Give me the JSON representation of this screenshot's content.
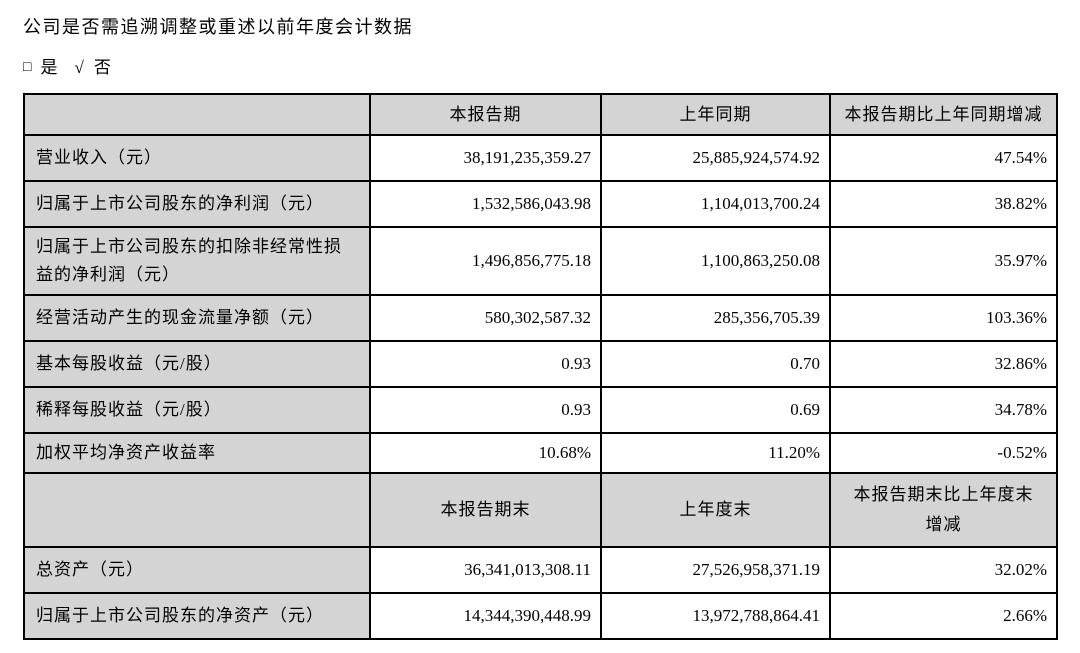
{
  "intro": {
    "question": "公司是否需追溯调整或重述以前年度会计数据",
    "yes_box": "□",
    "yes_label": "是",
    "check_mark": "√",
    "no_label": "否"
  },
  "table": {
    "header_period": {
      "col_label": "",
      "col_current": "本报告期",
      "col_prior": "上年同期",
      "col_change": "本报告期比上年同期增减"
    },
    "rows_period": [
      {
        "label": "营业收入（元）",
        "current": "38,191,235,359.27",
        "prior": "25,885,924,574.92",
        "change": "47.54%"
      },
      {
        "label": "归属于上市公司股东的净利润（元）",
        "current": "1,532,586,043.98",
        "prior": "1,104,013,700.24",
        "change": "38.82%"
      },
      {
        "label": "归属于上市公司股东的扣除非经常性损益的净利润（元）",
        "current": "1,496,856,775.18",
        "prior": "1,100,863,250.08",
        "change": "35.97%"
      },
      {
        "label": "经营活动产生的现金流量净额（元）",
        "current": "580,302,587.32",
        "prior": "285,356,705.39",
        "change": "103.36%"
      },
      {
        "label": "基本每股收益（元/股）",
        "current": "0.93",
        "prior": "0.70",
        "change": "32.86%"
      },
      {
        "label": "稀释每股收益（元/股）",
        "current": "0.93",
        "prior": "0.69",
        "change": "34.78%"
      },
      {
        "label": "加权平均净资产收益率",
        "current": "10.68%",
        "prior": "11.20%",
        "change": "-0.52%"
      }
    ],
    "header_end": {
      "col_label": "",
      "col_current": "本报告期末",
      "col_prior": "上年度末",
      "col_change": "本报告期末比上年度末增减"
    },
    "rows_end": [
      {
        "label": "总资产（元）",
        "current": "36,341,013,308.11",
        "prior": "27,526,958,371.19",
        "change": "32.02%"
      },
      {
        "label": "归属于上市公司股东的净资产（元）",
        "current": "14,344,390,448.99",
        "prior": "13,972,788,864.41",
        "change": "2.66%"
      }
    ]
  },
  "colors": {
    "header_bg": "#d4d4d4",
    "label_bg": "#d4d4d4",
    "border": "#000000",
    "text": "#000000",
    "page_bg": "#ffffff"
  }
}
